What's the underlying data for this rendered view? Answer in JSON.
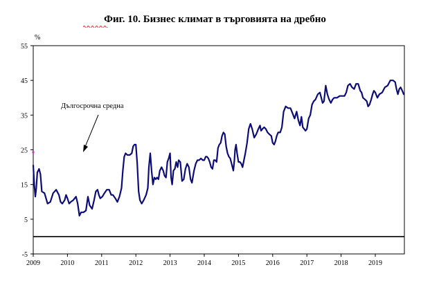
{
  "chart_data": {
    "type": "line",
    "title": "Фиг. 10. Бизнес климат в търговията на дребно",
    "ylabel_unit": "%",
    "ylim": [
      -5,
      55
    ],
    "yticks": [
      55,
      45,
      35,
      25,
      15,
      5,
      -5
    ],
    "xlim": [
      2009.0,
      2019.85
    ],
    "xticks": [
      "2009",
      "2010",
      "2011",
      "2012",
      "2013",
      "2014",
      "2015",
      "2016",
      "2017",
      "2018",
      "2019"
    ],
    "long_term_average": {
      "label": "Дългосрочна средна",
      "value": 24.3
    },
    "zero_line": 0,
    "colors": {
      "series": "#0c0c7a",
      "marker": "#cc33cc",
      "axis": "#000000"
    },
    "series": [
      {
        "points": [
          [
            2009.0,
            20.5
          ],
          [
            2009.03,
            15
          ],
          [
            2009.06,
            11.5
          ],
          [
            2009.09,
            14
          ],
          [
            2009.12,
            18.5
          ],
          [
            2009.17,
            19.5
          ],
          [
            2009.21,
            18
          ],
          [
            2009.25,
            13
          ],
          [
            2009.33,
            12.5
          ],
          [
            2009.42,
            9.5
          ],
          [
            2009.5,
            10
          ],
          [
            2009.58,
            12.5
          ],
          [
            2009.67,
            13.5
          ],
          [
            2009.75,
            12
          ],
          [
            2009.8,
            10
          ],
          [
            2009.85,
            9.5
          ],
          [
            2009.92,
            10.5
          ],
          [
            2009.96,
            12
          ],
          [
            2010.0,
            11
          ],
          [
            2010.05,
            9.5
          ],
          [
            2010.1,
            10
          ],
          [
            2010.17,
            10.5
          ],
          [
            2010.25,
            11.5
          ],
          [
            2010.3,
            9.5
          ],
          [
            2010.35,
            6
          ],
          [
            2010.4,
            7
          ],
          [
            2010.47,
            7
          ],
          [
            2010.54,
            7.5
          ],
          [
            2010.6,
            11.5
          ],
          [
            2010.65,
            9
          ],
          [
            2010.72,
            8
          ],
          [
            2010.78,
            10.5
          ],
          [
            2010.83,
            13
          ],
          [
            2010.88,
            13.5
          ],
          [
            2010.92,
            12
          ],
          [
            2010.96,
            11
          ],
          [
            2011.02,
            11.5
          ],
          [
            2011.08,
            12.5
          ],
          [
            2011.15,
            13.5
          ],
          [
            2011.22,
            13.5
          ],
          [
            2011.28,
            12
          ],
          [
            2011.33,
            12
          ],
          [
            2011.4,
            11
          ],
          [
            2011.46,
            10
          ],
          [
            2011.52,
            11.5
          ],
          [
            2011.58,
            14
          ],
          [
            2011.62,
            19
          ],
          [
            2011.66,
            23
          ],
          [
            2011.7,
            24
          ],
          [
            2011.75,
            23.5
          ],
          [
            2011.82,
            23.5
          ],
          [
            2011.88,
            24
          ],
          [
            2011.92,
            26
          ],
          [
            2011.96,
            26.5
          ],
          [
            2012.0,
            26.5
          ],
          [
            2012.04,
            21
          ],
          [
            2012.08,
            13
          ],
          [
            2012.12,
            10.5
          ],
          [
            2012.17,
            9.5
          ],
          [
            2012.23,
            10.5
          ],
          [
            2012.3,
            12
          ],
          [
            2012.35,
            14
          ],
          [
            2012.38,
            20
          ],
          [
            2012.42,
            24
          ],
          [
            2012.46,
            19
          ],
          [
            2012.5,
            15
          ],
          [
            2012.54,
            17
          ],
          [
            2012.58,
            16.5
          ],
          [
            2012.62,
            17
          ],
          [
            2012.66,
            16.5
          ],
          [
            2012.7,
            19
          ],
          [
            2012.75,
            20
          ],
          [
            2012.8,
            19
          ],
          [
            2012.84,
            17.5
          ],
          [
            2012.88,
            17
          ],
          [
            2012.92,
            21.5
          ],
          [
            2012.96,
            22.5
          ],
          [
            2013.0,
            24
          ],
          [
            2013.03,
            17
          ],
          [
            2013.06,
            15
          ],
          [
            2013.1,
            19
          ],
          [
            2013.14,
            19.5
          ],
          [
            2013.18,
            21.5
          ],
          [
            2013.22,
            20
          ],
          [
            2013.25,
            22
          ],
          [
            2013.3,
            21.5
          ],
          [
            2013.35,
            16
          ],
          [
            2013.4,
            16.5
          ],
          [
            2013.45,
            19.5
          ],
          [
            2013.5,
            21
          ],
          [
            2013.55,
            20
          ],
          [
            2013.6,
            16.5
          ],
          [
            2013.64,
            15.5
          ],
          [
            2013.7,
            19
          ],
          [
            2013.75,
            21
          ],
          [
            2013.8,
            22
          ],
          [
            2013.85,
            22
          ],
          [
            2013.9,
            22.5
          ],
          [
            2013.96,
            22
          ],
          [
            2014.0,
            22
          ],
          [
            2014.04,
            23
          ],
          [
            2014.08,
            23
          ],
          [
            2014.12,
            22.5
          ],
          [
            2014.16,
            21.5
          ],
          [
            2014.2,
            20
          ],
          [
            2014.24,
            19.5
          ],
          [
            2014.28,
            22
          ],
          [
            2014.32,
            22
          ],
          [
            2014.36,
            21.5
          ],
          [
            2014.4,
            25.5
          ],
          [
            2014.44,
            26.5
          ],
          [
            2014.48,
            27
          ],
          [
            2014.52,
            29
          ],
          [
            2014.56,
            30
          ],
          [
            2014.6,
            29.5
          ],
          [
            2014.64,
            26
          ],
          [
            2014.68,
            24
          ],
          [
            2014.72,
            23
          ],
          [
            2014.76,
            22.5
          ],
          [
            2014.8,
            21
          ],
          [
            2014.85,
            19
          ],
          [
            2014.88,
            22
          ],
          [
            2014.9,
            25
          ],
          [
            2014.93,
            26.5
          ],
          [
            2014.96,
            24
          ],
          [
            2015.0,
            21.5
          ],
          [
            2015.04,
            21.5
          ],
          [
            2015.08,
            21
          ],
          [
            2015.12,
            20
          ],
          [
            2015.16,
            22
          ],
          [
            2015.2,
            24
          ],
          [
            2015.25,
            27
          ],
          [
            2015.3,
            31
          ],
          [
            2015.35,
            32.5
          ],
          [
            2015.4,
            31
          ],
          [
            2015.46,
            28.5
          ],
          [
            2015.52,
            29.5
          ],
          [
            2015.58,
            31
          ],
          [
            2015.63,
            32
          ],
          [
            2015.66,
            30.5
          ],
          [
            2015.7,
            31
          ],
          [
            2015.75,
            31.5
          ],
          [
            2015.8,
            31
          ],
          [
            2015.85,
            30
          ],
          [
            2015.9,
            29.5
          ],
          [
            2015.96,
            29
          ],
          [
            2016.0,
            27
          ],
          [
            2016.04,
            26.5
          ],
          [
            2016.08,
            27.5
          ],
          [
            2016.12,
            29
          ],
          [
            2016.16,
            30
          ],
          [
            2016.22,
            30
          ],
          [
            2016.27,
            31.5
          ],
          [
            2016.32,
            36
          ],
          [
            2016.38,
            37.5
          ],
          [
            2016.45,
            37
          ],
          [
            2016.52,
            37
          ],
          [
            2016.58,
            35.5
          ],
          [
            2016.64,
            34
          ],
          [
            2016.7,
            36
          ],
          [
            2016.75,
            33.5
          ],
          [
            2016.8,
            32
          ],
          [
            2016.84,
            34.5
          ],
          [
            2016.88,
            31.5
          ],
          [
            2016.92,
            31
          ],
          [
            2016.96,
            30.5
          ],
          [
            2017.0,
            31
          ],
          [
            2017.05,
            34
          ],
          [
            2017.1,
            35
          ],
          [
            2017.15,
            38
          ],
          [
            2017.2,
            39
          ],
          [
            2017.25,
            39.5
          ],
          [
            2017.32,
            41
          ],
          [
            2017.38,
            41.5
          ],
          [
            2017.42,
            40
          ],
          [
            2017.46,
            38.5
          ],
          [
            2017.5,
            39
          ],
          [
            2017.55,
            43.5
          ],
          [
            2017.6,
            41
          ],
          [
            2017.65,
            39.5
          ],
          [
            2017.7,
            38.5
          ],
          [
            2017.75,
            39.5
          ],
          [
            2017.8,
            40
          ],
          [
            2017.88,
            40
          ],
          [
            2017.96,
            40.5
          ],
          [
            2018.04,
            40.5
          ],
          [
            2018.1,
            40.5
          ],
          [
            2018.15,
            41.5
          ],
          [
            2018.2,
            43.5
          ],
          [
            2018.26,
            44
          ],
          [
            2018.32,
            43
          ],
          [
            2018.38,
            42.5
          ],
          [
            2018.44,
            44
          ],
          [
            2018.5,
            44
          ],
          [
            2018.56,
            42
          ],
          [
            2018.6,
            41.5
          ],
          [
            2018.64,
            40
          ],
          [
            2018.7,
            39.5
          ],
          [
            2018.75,
            39
          ],
          [
            2018.79,
            37.5
          ],
          [
            2018.83,
            38
          ],
          [
            2018.88,
            39.5
          ],
          [
            2018.92,
            41
          ],
          [
            2018.96,
            42
          ],
          [
            2019.0,
            41.5
          ],
          [
            2019.06,
            40
          ],
          [
            2019.12,
            41
          ],
          [
            2019.2,
            41.5
          ],
          [
            2019.28,
            43
          ],
          [
            2019.36,
            43.5
          ],
          [
            2019.44,
            45
          ],
          [
            2019.52,
            45
          ],
          [
            2019.58,
            44.5
          ],
          [
            2019.62,
            42.5
          ],
          [
            2019.66,
            41
          ],
          [
            2019.7,
            42.5
          ],
          [
            2019.74,
            43
          ],
          [
            2019.79,
            42
          ],
          [
            2019.83,
            41
          ]
        ]
      }
    ],
    "annotations": [
      {
        "text": "Дългосрочна средна"
      }
    ],
    "grid": false,
    "legend": "none"
  }
}
